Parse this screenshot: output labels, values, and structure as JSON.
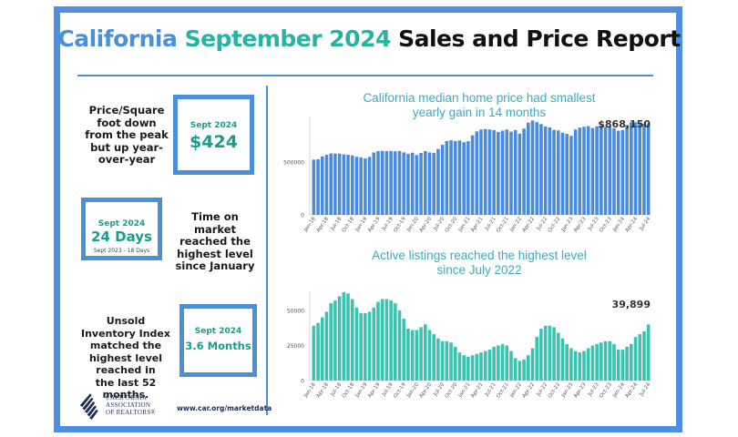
{
  "title": {
    "part1": "California",
    "part2": "September 2024",
    "part3": "Sales and Price Report"
  },
  "price_sqft": {
    "description_lines": [
      "Price/Square",
      "foot down",
      "from the peak",
      "but up year-",
      "over-year"
    ],
    "card_label": "Sept 2024",
    "card_value": "$424"
  },
  "time_on_market": {
    "card_label": "Sept 2024",
    "card_value": "24 Days",
    "card_note": "Sept 2023 - 18 Days",
    "description_lines": [
      "Time on",
      "market",
      "reached the",
      "highest level",
      "since January"
    ]
  },
  "unsold_inventory": {
    "description_lines": [
      "Unsold",
      "Inventory Index",
      "matched the",
      "highest level",
      "reached in",
      "the last 52 months."
    ],
    "card_label": "Sept 2024",
    "card_value": "3.6 Months"
  },
  "footer": {
    "logo_lines": [
      "CALIFORNIA",
      "ASSOCIATION",
      "OF REALTORS®"
    ],
    "url": "www.car.org/marketdata"
  },
  "colors": {
    "frame": "#4f8fe0",
    "teal": "#24b4a0",
    "bar_blue": "#4a8bdb",
    "bar_teal": "#3cc2b0"
  },
  "chart_data": [
    {
      "type": "bar",
      "title_lines": [
        "California median home price had smallest",
        "yearly gain in 14 months"
      ],
      "xlabel": "",
      "ylabel": "",
      "ylim": [
        0,
        900000
      ],
      "yticks": [
        0,
        500000
      ],
      "tick_labels": [
        "Jan-18",
        "Apr-18",
        "Jul-18",
        "Oct-18",
        "Jan-19",
        "Apr-19",
        "Jul-19",
        "Oct-19",
        "Jan-20",
        "Apr-20",
        "Jul-20",
        "Oct-20",
        "Jan-21",
        "Apr-21",
        "Jul-21",
        "Oct-21",
        "Jan-22",
        "Apr-22",
        "Jul-22",
        "Oct-22",
        "Jan-23",
        "Apr-23",
        "Jul-23",
        "Oct-23",
        "Jan-24",
        "Apr-24",
        "Jul-24"
      ],
      "annotation": "$868,150",
      "values": [
        525000,
        529000,
        556000,
        572000,
        584000,
        583000,
        582000,
        575000,
        571000,
        565000,
        552000,
        546000,
        536000,
        551000,
        593000,
        606000,
        608000,
        606000,
        608000,
        604000,
        608000,
        594000,
        581000,
        591000,
        569000,
        588000,
        606000,
        593000,
        588000,
        626000,
        666000,
        702000,
        709000,
        701000,
        707000,
        690000,
        700000,
        756000,
        793000,
        811000,
        816000,
        812000,
        806000,
        788000,
        801000,
        811000,
        791000,
        806000,
        772000,
        820000,
        876000,
        897000,
        881000,
        863000,
        841000,
        831000,
        808000,
        802000,
        781000,
        770000,
        751000,
        811000,
        830000,
        838000,
        844000,
        826000,
        842000,
        847000,
        837000,
        839000,
        824000,
        800000,
        806000,
        854000,
        880000,
        880000,
        873000,
        866000,
        868150
      ]
    },
    {
      "type": "bar",
      "title_lines": [
        "Active listings reached the highest level",
        "since July 2022"
      ],
      "xlabel": "",
      "ylabel": "",
      "ylim": [
        0,
        70000
      ],
      "yticks": [
        0,
        25000,
        50000
      ],
      "tick_labels": [
        "Jan-18",
        "Apr-18",
        "Jul-18",
        "Oct-18",
        "Jan-19",
        "Apr-19",
        "Jul-19",
        "Oct-19",
        "Jan-20",
        "Apr-20",
        "Jul-20",
        "Oct-20",
        "Jan-21",
        "Apr-21",
        "Jul-21",
        "Oct-21",
        "Jan-22",
        "Apr-22",
        "Jul-22",
        "Oct-22",
        "Jan-23",
        "Apr-23",
        "Jul-23",
        "Oct-23",
        "Jan-24",
        "Apr-24",
        "Jul-24"
      ],
      "annotation": "39,899",
      "values": [
        39000,
        41000,
        45000,
        49000,
        55000,
        57000,
        60000,
        63000,
        62000,
        58000,
        52000,
        48000,
        48000,
        49000,
        52000,
        56000,
        58000,
        58000,
        57000,
        55000,
        50000,
        44000,
        37000,
        36000,
        36000,
        38000,
        40000,
        36000,
        33000,
        30000,
        28000,
        28000,
        27000,
        24000,
        20000,
        18000,
        17000,
        18000,
        19000,
        20000,
        21000,
        22000,
        24000,
        25000,
        26000,
        25000,
        21000,
        16000,
        14000,
        15000,
        18000,
        23000,
        31000,
        37000,
        39000,
        39000,
        38000,
        34000,
        30000,
        26000,
        23000,
        21000,
        20000,
        21000,
        23000,
        25000,
        26000,
        27000,
        28000,
        28000,
        26000,
        22000,
        22000,
        24000,
        26000,
        31000,
        33000,
        35000,
        39899
      ]
    }
  ]
}
